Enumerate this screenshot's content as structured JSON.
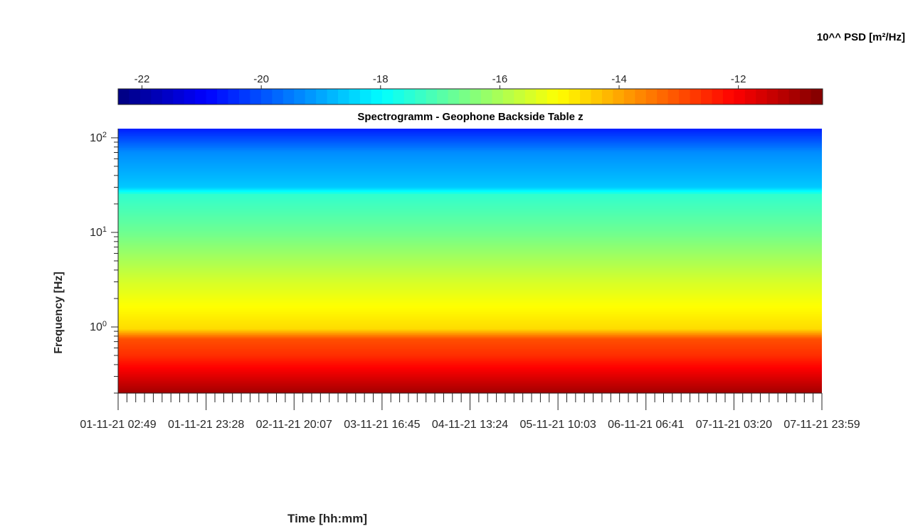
{
  "colorbar": {
    "label": "10^^ PSD [m²/Hz]",
    "ticks": [
      {
        "value": -22,
        "label": "-22"
      },
      {
        "value": -20,
        "label": "-20"
      },
      {
        "value": -18,
        "label": "-18"
      },
      {
        "value": -16,
        "label": "-16"
      },
      {
        "value": -14,
        "label": "-14"
      },
      {
        "value": -12,
        "label": "-12"
      }
    ],
    "range": [
      -22.4,
      -10.6
    ],
    "colormap": "jet"
  },
  "chart_data": {
    "type": "heatmap",
    "title": "Spectrogramm - Geophone Backside Table z",
    "xlabel": "Time [hh:mm]",
    "ylabel": "Frequency [Hz]",
    "yscale": "log",
    "ylim": [
      0.2,
      125
    ],
    "x_tick_labels": [
      "01-11-21  02:49",
      "01-11-21  23:28",
      "02-11-21  20:07",
      "03-11-21  16:45",
      "04-11-21  13:24",
      "05-11-21  10:03",
      "06-11-21  06:41",
      "07-11-21  03:20",
      "07-11-21  23:59"
    ],
    "y_ticks": [
      {
        "value": 1,
        "exp": "0"
      },
      {
        "value": 10,
        "exp": "1"
      },
      {
        "value": 100,
        "exp": "2"
      }
    ],
    "psd_profile_log10": [
      {
        "freq": 0.2,
        "psd": -11.0
      },
      {
        "freq": 0.5,
        "psd": -12.6
      },
      {
        "freq": 0.75,
        "psd": -13.0
      },
      {
        "freq": 0.95,
        "psd": -14.6
      },
      {
        "freq": 3.0,
        "psd": -15.5
      },
      {
        "freq": 10,
        "psd": -16.7
      },
      {
        "freq": 25,
        "psd": -17.4
      },
      {
        "freq": 30,
        "psd": -18.6
      },
      {
        "freq": 70,
        "psd": -19.3
      },
      {
        "freq": 125,
        "psd": -20.6
      }
    ]
  }
}
